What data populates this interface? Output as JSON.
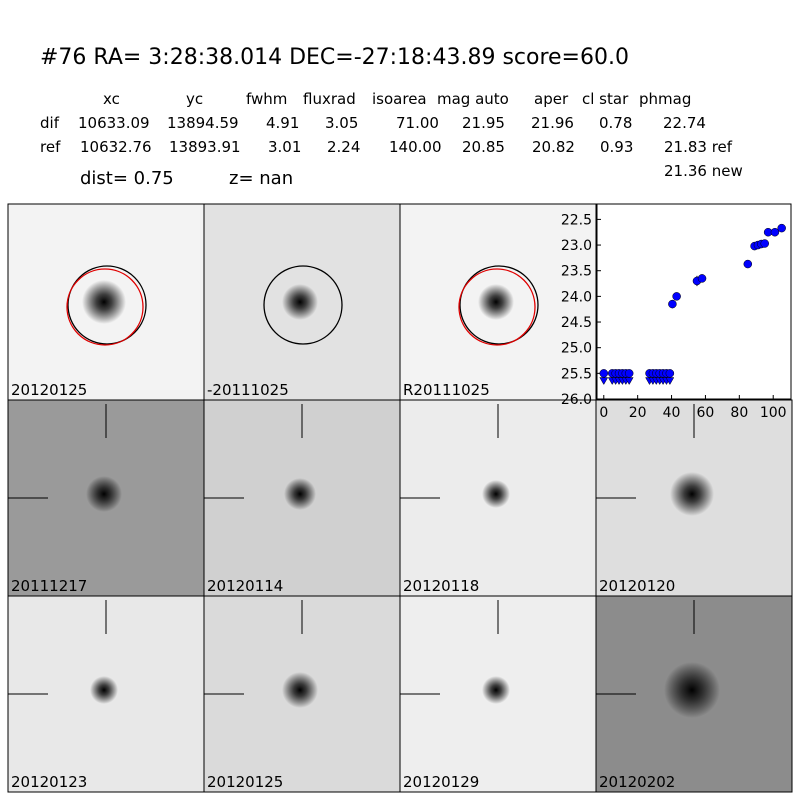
{
  "header": {
    "title": "#76   RA= 3:28:38.014 DEC=-27:18:43.89       score=60.0",
    "columns": [
      "xc",
      "yc",
      "fwhm",
      "fluxrad",
      "isoarea",
      "mag auto",
      "aper",
      "cl star",
      "phmag"
    ],
    "rows": [
      [
        "dif",
        "10633.09",
        "13894.59",
        "4.91",
        "3.05",
        "71.00",
        "21.95",
        "21.96",
        "0.78",
        "22.74"
      ],
      [
        "ref",
        "10632.76",
        "13893.91",
        "3.01",
        "2.24",
        "140.00",
        "20.85",
        "20.82",
        "0.93",
        "21.83 ref"
      ]
    ],
    "extra": "21.36 new",
    "dist": "dist=  0.75",
    "z": "z=   nan"
  },
  "tiles": [
    {
      "label": "20120125"
    },
    {
      "label": "-20111025"
    },
    {
      "label": "R20111025"
    },
    {
      "label": "20111217"
    },
    {
      "label": "20120114"
    },
    {
      "label": "20120118"
    },
    {
      "label": "20120120"
    },
    {
      "label": "20120123"
    },
    {
      "label": "20120125",
      "color": "#ff0000"
    },
    {
      "label": "20120129"
    },
    {
      "label": "20120202"
    }
  ],
  "chart_data": {
    "type": "scatter",
    "xlim": [
      -4,
      110.5
    ],
    "ylim": [
      26.0,
      22.2
    ],
    "xticks": [
      0,
      20,
      40,
      60,
      80,
      100
    ],
    "yticks": [
      {
        "value": 22.5,
        "label": "22.5"
      },
      {
        "value": 23,
        "label": "23.0"
      },
      {
        "value": 23.5,
        "label": "23.5"
      },
      {
        "value": 24,
        "label": "24.0"
      },
      {
        "value": 24.5,
        "label": "24.5"
      },
      {
        "value": 25,
        "label": "25.0"
      },
      {
        "value": 25.5,
        "label": "25.5"
      },
      {
        "value": 26,
        "label": "26.0"
      }
    ],
    "series": [
      {
        "color": "#0000ff",
        "marker": "o",
        "x": [
          40.5,
          43,
          55,
          58,
          85,
          89,
          91,
          93,
          95,
          97,
          101,
          105
        ],
        "values": [
          24.15,
          24.0,
          23.7,
          23.65,
          23.37,
          23.02,
          23.0,
          22.98,
          22.97,
          22.75,
          22.75,
          22.67
        ],
        "errors": [
          0.08,
          0.06,
          0.1,
          0.08,
          0.05,
          0.05,
          0.04,
          0.04,
          0.04,
          0.04,
          0.04,
          0.04
        ]
      },
      {
        "color": "#0000ff",
        "marker": "o",
        "x": [
          0,
          5,
          7,
          9,
          11,
          13,
          15,
          27,
          29,
          31,
          33,
          35,
          37,
          39
        ],
        "values": [
          25.5,
          25.5,
          25.5,
          25.5,
          25.5,
          25.5,
          25.5,
          25.5,
          25.5,
          25.5,
          25.5,
          25.5,
          25.5,
          25.5
        ]
      },
      {
        "color": "#0000ff",
        "marker": "v",
        "x": [
          0,
          5,
          7,
          9,
          11,
          13,
          15,
          27,
          29,
          31,
          33,
          35,
          37,
          39
        ],
        "values": [
          25.64,
          25.64,
          25.64,
          25.64,
          25.64,
          25.64,
          25.64,
          25.64,
          25.64,
          25.64,
          25.64,
          25.64,
          25.64,
          25.64
        ]
      }
    ]
  }
}
